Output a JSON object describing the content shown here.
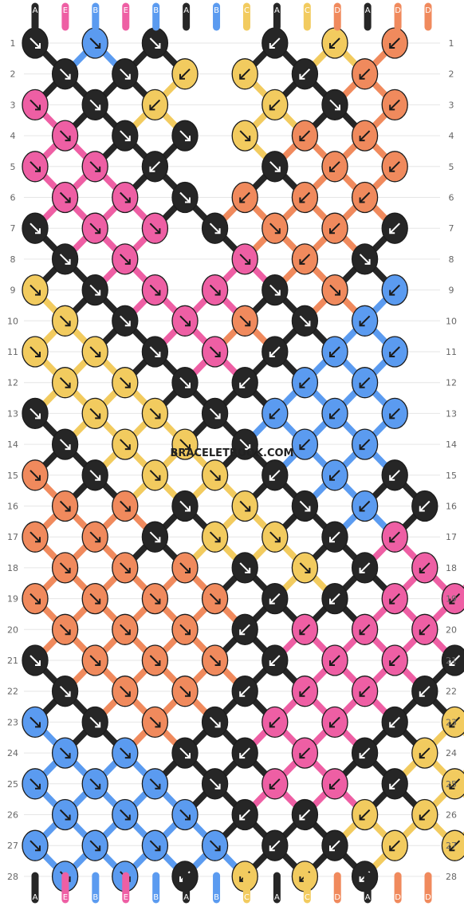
{
  "colors": {
    "A": "#262626",
    "E": "#ee5fa4",
    "B": "#5b9bf0",
    "C": "#f2cb5f",
    "D": "#f08a5d"
  },
  "strings_top": [
    "A",
    "E",
    "B",
    "E",
    "B",
    "A",
    "B",
    "C",
    "A",
    "C",
    "D",
    "A",
    "D",
    "D"
  ],
  "strings_bottom": [
    "A",
    "E",
    "B",
    "E",
    "B",
    "A",
    "B",
    "C",
    "A",
    "C",
    "D",
    "A",
    "D",
    "D"
  ],
  "row_numbers": [
    "1",
    "2",
    "3",
    "4",
    "5",
    "6",
    "7",
    "8",
    "9",
    "10",
    "11",
    "12",
    "13",
    "14",
    "15",
    "16",
    "17",
    "18",
    "19",
    "20",
    "21",
    "22",
    "23",
    "24",
    "25",
    "26",
    "27",
    "28"
  ],
  "watermark": "BRACELETBOOK.COM",
  "knots": [
    "ABAACD",
    "AACCAD",
    "EACCAD",
    "EAACDD",
    "EEAADD",
    "EEADDD",
    "AEEADDA",
    "AEEDA",
    "CAEEADB",
    "CAEDAB",
    "CCAEABB",
    "CCAABB",
    "ACCABBB",
    "ACCABB",
    "DACCABA",
    "DDACABA",
    "DDACCAE",
    "DDDACAEE",
    "DDDDAAEE",
    "DDDAEEE",
    "ADDDAEEA",
    "ADDAEEA",
    "BADAEEAC",
    "BBAAEACC",
    "BBBAEEACC",
    "BBBAACCC",
    "BBBBAACCA",
    "BBACCA"
  ],
  "arrows": [
    "RRRLLL",
    "RRLLLL",
    "RRLLRL",
    "RRRRLL",
    "RRLRLL",
    "RRRLLL",
    "RRRRRLL",
    "RRRLR",
    "RRRRRRL",
    "RRRRRL",
    "RRRRLLL",
    "RRRLLL",
    "RRRRLLL",
    "RRRRLL",
    "RRRRLLL",
    "RRRRRLL",
    "RRRRRLL",
    "RRRRRLLL",
    "RRRRLLLL",
    "RRRLLLL",
    "RRRRLLLL",
    "RRRLLLL",
    "RRRRLLLL",
    "RRRLLLLL",
    "RRRRLLLLL",
    "RRRLLLL",
    "RRRRLLLLL",
    "RRLLLL"
  ]
}
